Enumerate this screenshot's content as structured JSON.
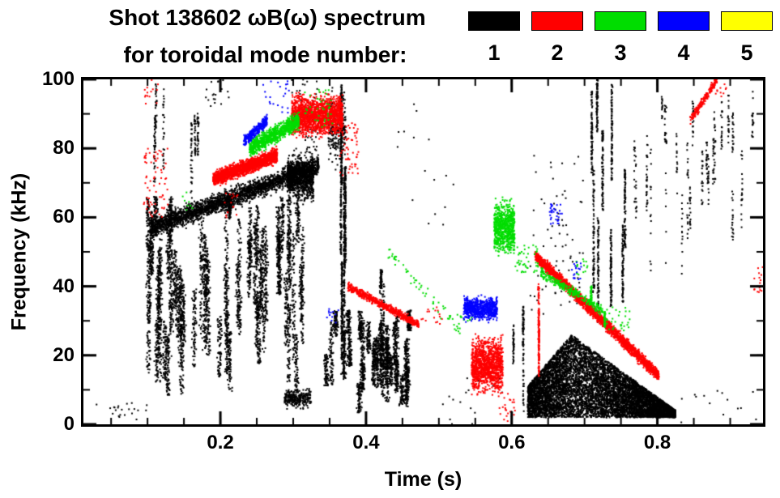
{
  "title": "Shot 138602 ωB(ω) spectrum",
  "subtitle": "for toroidal mode number:",
  "legend": {
    "modes": [
      {
        "label": "1",
        "color": "#000000"
      },
      {
        "label": "2",
        "color": "#ff0000"
      },
      {
        "label": "3",
        "color": "#00dd00"
      },
      {
        "label": "4",
        "color": "#0000ff"
      },
      {
        "label": "5",
        "color": "#ffff00"
      }
    ]
  },
  "axes": {
    "x": {
      "label": "Time (s)",
      "min": 0.012,
      "max": 0.945,
      "major_ticks": [
        0.2,
        0.4,
        0.6,
        0.8
      ],
      "major_labels": [
        "0.2",
        "0.4",
        "0.6",
        "0.8"
      ],
      "minor_step": 0.05
    },
    "y": {
      "label": "Frequency (kHz)",
      "min": 0,
      "max": 100,
      "major_ticks": [
        0,
        20,
        40,
        60,
        80,
        100
      ],
      "major_labels": [
        "0",
        "20",
        "40",
        "60",
        "80",
        "100"
      ],
      "minor_step": 10
    }
  },
  "chart_data": {
    "type": "scatter",
    "title": "Shot 138602 ωB(ω) spectrum for toroidal mode number",
    "xlabel": "Time (s)",
    "ylabel": "Frequency (kHz)",
    "xlim": [
      0.012,
      0.945
    ],
    "ylim": [
      0,
      100
    ],
    "grid": false,
    "legend_position": "top-right",
    "series": [
      {
        "name": "n=1",
        "color": "#000000",
        "clusters": [
          {
            "shape": "streaks",
            "t": [
              0.1,
              0.315
            ],
            "f": [
              8,
              66
            ],
            "streaks": 60,
            "pts": 80,
            "tw": 0.004
          },
          {
            "shape": "band",
            "t": [
              0.105,
              0.335
            ],
            "fstart": 57,
            "fend": 75,
            "width": 4,
            "n": 2600
          },
          {
            "shape": "blob",
            "t": [
              0.292,
              0.328
            ],
            "f": [
              63,
              80
            ],
            "n": 900
          },
          {
            "shape": "streaks",
            "t": [
              0.335,
              0.46
            ],
            "f": [
              3,
              33
            ],
            "streaks": 28,
            "pts": 85,
            "tw": 0.0045
          },
          {
            "shape": "streaks",
            "t": [
              0.352,
              0.372
            ],
            "f": [
              4,
              100
            ],
            "streaks": 5,
            "pts": 170,
            "tw": 0.0015
          },
          {
            "shape": "blob",
            "t": [
              0.348,
              0.372
            ],
            "f": [
              72,
              100
            ],
            "n": 260
          },
          {
            "shape": "specks",
            "t": [
              0.298,
              0.335
            ],
            "f": [
              78,
              100
            ],
            "n": 70
          },
          {
            "shape": "blob",
            "t": [
              0.288,
              0.325
            ],
            "f": [
              4,
              11
            ],
            "n": 260
          },
          {
            "shape": "wedge",
            "t": [
              0.622,
              0.682
            ],
            "fbase": 2,
            "fmax": [
              11,
              26
            ],
            "n": 2600
          },
          {
            "shape": "wedge",
            "t": [
              0.682,
              0.825
            ],
            "fbase": 2,
            "fmax": [
              26,
              4
            ],
            "n": 5200
          },
          {
            "shape": "streaks",
            "t": [
              0.695,
              0.765
            ],
            "f": [
              25,
              100
            ],
            "streaks": 9,
            "pts": 90,
            "tw": 0.0015
          },
          {
            "shape": "specks",
            "t": [
              0.625,
              0.7
            ],
            "f": [
              32,
              78
            ],
            "n": 70
          },
          {
            "shape": "streaks",
            "t": [
              0.84,
              0.945
            ],
            "f": [
              52,
              100
            ],
            "streaks": 14,
            "pts": 20,
            "tw": 0.0015
          },
          {
            "shape": "specks",
            "t": [
              0.03,
              0.1
            ],
            "f": [
              1,
              7
            ],
            "n": 22
          },
          {
            "shape": "streaks",
            "t": [
              0.1,
              0.128
            ],
            "f": [
              55,
              100
            ],
            "streaks": 4,
            "pts": 28,
            "tw": 0.0015
          },
          {
            "shape": "streaks",
            "t": [
              0.148,
              0.172
            ],
            "f": [
              60,
              100
            ],
            "streaks": 3,
            "pts": 35,
            "tw": 0.0015
          },
          {
            "shape": "specks",
            "t": [
              0.18,
              0.215
            ],
            "f": [
              92,
              100
            ],
            "n": 18
          },
          {
            "shape": "streaks",
            "t": [
              0.598,
              0.622
            ],
            "f": [
              0,
              38
            ],
            "streaks": 3,
            "pts": 45,
            "tw": 0.0012
          },
          {
            "shape": "specks",
            "t": [
              0.5,
              0.6
            ],
            "f": [
              0,
              14
            ],
            "n": 18
          },
          {
            "shape": "specks",
            "t": [
              0.44,
              0.52
            ],
            "f": [
              55,
              95
            ],
            "n": 16
          },
          {
            "shape": "streaks",
            "t": [
              0.765,
              0.835
            ],
            "f": [
              28,
              95
            ],
            "streaks": 10,
            "pts": 14,
            "tw": 0.0012
          },
          {
            "shape": "streaks",
            "t": [
              0.395,
              0.428
            ],
            "f": [
              3,
              45
            ],
            "streaks": 4,
            "pts": 55,
            "tw": 0.0018
          },
          {
            "shape": "specks",
            "t": [
              0.83,
              0.95
            ],
            "f": [
              0,
              12
            ],
            "n": 14
          }
        ]
      },
      {
        "name": "n=2",
        "color": "#ff0000",
        "clusters": [
          {
            "shape": "specks",
            "t": [
              0.095,
              0.128
            ],
            "f": [
              60,
              80
            ],
            "n": 70
          },
          {
            "shape": "specks",
            "t": [
              0.095,
              0.118
            ],
            "f": [
              92,
              100
            ],
            "n": 14
          },
          {
            "shape": "band",
            "t": [
              0.19,
              0.278
            ],
            "fstart": 71,
            "fend": 78,
            "width": 2.8,
            "n": 1900
          },
          {
            "shape": "blob",
            "t": [
              0.298,
              0.368
            ],
            "f": [
              82,
              97
            ],
            "n": 1700
          },
          {
            "shape": "specks",
            "t": [
              0.362,
              0.39
            ],
            "f": [
              72,
              88
            ],
            "n": 60
          },
          {
            "shape": "band",
            "t": [
              0.375,
              0.472
            ],
            "fstart": 40,
            "fend": 29,
            "width": 1.6,
            "n": 650
          },
          {
            "shape": "blob",
            "t": [
              0.545,
              0.588
            ],
            "f": [
              7,
              27
            ],
            "n": 1200
          },
          {
            "shape": "specks",
            "t": [
              0.582,
              0.605
            ],
            "f": [
              0,
              9
            ],
            "n": 25
          },
          {
            "shape": "streaks",
            "t": [
              0.625,
              0.638
            ],
            "f": [
              13,
              52
            ],
            "streaks": 2,
            "pts": 90,
            "tw": 0.0012
          },
          {
            "shape": "band",
            "t": [
              0.632,
              0.802
            ],
            "fstart": 49,
            "fend": 14,
            "width": 2.4,
            "n": 2400
          },
          {
            "shape": "band",
            "t": [
              0.845,
              0.882
            ],
            "fstart": 88,
            "fend": 100,
            "width": 2,
            "n": 200
          },
          {
            "shape": "specks",
            "t": [
              0.933,
              0.95
            ],
            "f": [
              38,
              46
            ],
            "n": 22
          },
          {
            "shape": "specks",
            "t": [
              0.475,
              0.505
            ],
            "f": [
              29,
              34
            ],
            "n": 16
          },
          {
            "shape": "specks",
            "t": [
              0.205,
              0.225
            ],
            "f": [
              60,
              67
            ],
            "n": 16
          },
          {
            "shape": "specks",
            "t": [
              0.88,
              0.895
            ],
            "f": [
              95,
              100
            ],
            "n": 10
          }
        ]
      },
      {
        "name": "n=3",
        "color": "#00dd00",
        "clusters": [
          {
            "shape": "band",
            "t": [
              0.24,
              0.308
            ],
            "fstart": 80,
            "fend": 88,
            "width": 3.5,
            "n": 950
          },
          {
            "shape": "specks",
            "t": [
              0.315,
              0.355
            ],
            "f": [
              85,
              97
            ],
            "n": 40
          },
          {
            "shape": "band",
            "t": [
              0.43,
              0.53
            ],
            "fstart": 50,
            "fend": 27,
            "width": 3,
            "n": 60
          },
          {
            "shape": "blob",
            "t": [
              0.576,
              0.604
            ],
            "f": [
              47,
              67
            ],
            "n": 750
          },
          {
            "shape": "specks",
            "t": [
              0.605,
              0.638
            ],
            "f": [
              44,
              52
            ],
            "n": 45
          },
          {
            "shape": "band",
            "t": [
              0.64,
              0.725
            ],
            "fstart": 44,
            "fend": 33,
            "width": 2,
            "n": 260
          },
          {
            "shape": "streaks",
            "t": [
              0.708,
              0.728
            ],
            "f": [
              27,
              42
            ],
            "streaks": 2,
            "pts": 50,
            "tw": 0.0012
          },
          {
            "shape": "specks",
            "t": [
              0.73,
              0.762
            ],
            "f": [
              27,
              34
            ],
            "n": 30
          },
          {
            "shape": "specks",
            "t": [
              0.688,
              0.705
            ],
            "f": [
              43,
              48
            ],
            "n": 16
          },
          {
            "shape": "specks",
            "t": [
              0.52,
              0.548
            ],
            "f": [
              28,
              32
            ],
            "n": 10
          },
          {
            "shape": "specks",
            "t": [
              0.145,
              0.162
            ],
            "f": [
              62,
              68
            ],
            "n": 8
          }
        ]
      },
      {
        "name": "n=4",
        "color": "#0000ff",
        "clusters": [
          {
            "shape": "band",
            "t": [
              0.232,
              0.264
            ],
            "fstart": 82,
            "fend": 88,
            "width": 2.2,
            "n": 300
          },
          {
            "shape": "specks",
            "t": [
              0.258,
              0.302
            ],
            "f": [
              90,
              100
            ],
            "n": 22
          },
          {
            "shape": "blob",
            "t": [
              0.534,
              0.58
            ],
            "f": [
              29,
              38
            ],
            "n": 680
          },
          {
            "shape": "specks",
            "t": [
              0.652,
              0.67
            ],
            "f": [
              58,
              64
            ],
            "n": 32
          },
          {
            "shape": "specks",
            "t": [
              0.682,
              0.698
            ],
            "f": [
              42,
              47
            ],
            "n": 18
          },
          {
            "shape": "specks",
            "t": [
              0.345,
              0.362
            ],
            "f": [
              29,
              34
            ],
            "n": 12
          }
        ]
      },
      {
        "name": "n=5",
        "color": "#ffff00",
        "clusters": []
      }
    ]
  }
}
